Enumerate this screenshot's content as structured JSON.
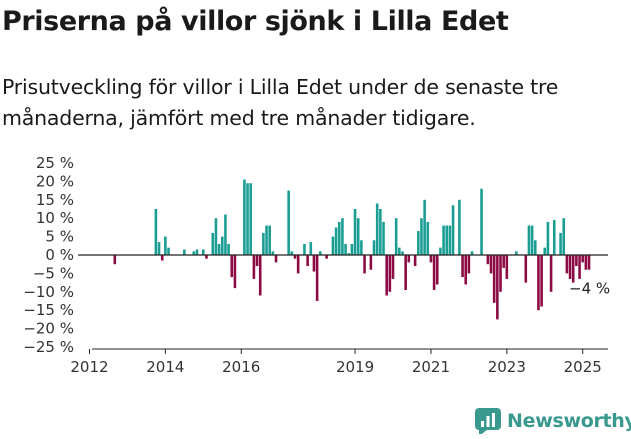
{
  "title": "Priserna på villor sjönk i Lilla Edet",
  "subtitle": "Prisutveckling för villor i Lilla Edet under de senaste tre månaderna, jämfört med tre månader tidigare.",
  "brand": {
    "name": "Newsworthy",
    "icon": "newsworthy-chart-logo-icon",
    "color": "#39998e"
  },
  "colors": {
    "positive": "#1a9e94",
    "negative": "#8c0b45",
    "axis": "#222222",
    "tick": "#333333"
  },
  "chart_data": {
    "type": "bar",
    "title": "",
    "xlabel": "",
    "ylabel": "",
    "x_ticks": [
      "2012",
      "2014",
      "2016",
      "2019",
      "2021",
      "2023",
      "2025"
    ],
    "y_ticks": [
      "25 %",
      "20 %",
      "15 %",
      "10 %",
      "5 %",
      "0 %",
      "−5 %",
      "−10 %",
      "−15 %",
      "−20 %",
      "−25 %"
    ],
    "ylim": [
      -25,
      25
    ],
    "xlim": [
      "2011-10",
      "2025-09"
    ],
    "grid": false,
    "annotation": {
      "text": "−4 %",
      "x": "2025-03",
      "y": -4
    },
    "series": [
      {
        "x": [
          "2012-09",
          "2013-10",
          "2013-11",
          "2013-12",
          "2014-01",
          "2014-02",
          "2014-07",
          "2014-10",
          "2014-11",
          "2015-01",
          "2015-02",
          "2015-04",
          "2015-05",
          "2015-06",
          "2015-07",
          "2015-08",
          "2015-09",
          "2015-10",
          "2015-11",
          "2016-02",
          "2016-03",
          "2016-04",
          "2016-05",
          "2016-06",
          "2016-07",
          "2016-08",
          "2016-09",
          "2016-10",
          "2016-11",
          "2016-12",
          "2017-04",
          "2017-05",
          "2017-06",
          "2017-07",
          "2017-09",
          "2017-10",
          "2017-11",
          "2017-12",
          "2018-01",
          "2018-02",
          "2018-04",
          "2018-06",
          "2018-07",
          "2018-08",
          "2018-09",
          "2018-10",
          "2018-11",
          "2018-12",
          "2019-01",
          "2019-02",
          "2019-03",
          "2019-04",
          "2019-06",
          "2019-07",
          "2019-08",
          "2019-09",
          "2019-10",
          "2019-11",
          "2019-12",
          "2020-01",
          "2020-02",
          "2020-03",
          "2020-04",
          "2020-05",
          "2020-06",
          "2020-08",
          "2020-09",
          "2020-10",
          "2020-11",
          "2020-12",
          "2021-01",
          "2021-02",
          "2021-03",
          "2021-04",
          "2021-05",
          "2021-06",
          "2021-07",
          "2021-08",
          "2021-10",
          "2021-11",
          "2021-12",
          "2022-01",
          "2022-02",
          "2022-05",
          "2022-07",
          "2022-08",
          "2022-09",
          "2022-10",
          "2022-11",
          "2022-12",
          "2023-01",
          "2023-04",
          "2023-07",
          "2023-08",
          "2023-09",
          "2023-10",
          "2023-11",
          "2023-12",
          "2024-01",
          "2024-02",
          "2024-03",
          "2024-04",
          "2024-06",
          "2024-07",
          "2024-08",
          "2024-09",
          "2024-10",
          "2024-11",
          "2024-12",
          "2025-01",
          "2025-02",
          "2025-03"
        ],
        "values": [
          -2.5,
          12.5,
          3.5,
          -1.5,
          5.0,
          2.0,
          1.5,
          1.0,
          1.5,
          1.5,
          -1.0,
          6.0,
          10.0,
          3.0,
          5.0,
          11.0,
          3.0,
          -6.0,
          -9.0,
          20.5,
          19.5,
          19.5,
          -6.5,
          -3.0,
          -11.0,
          6.0,
          8.0,
          8.0,
          1.0,
          -2.0,
          17.5,
          1.0,
          -1.0,
          -5.0,
          3.0,
          -3.0,
          3.5,
          -4.5,
          -12.5,
          1.0,
          -1.0,
          5.0,
          7.5,
          9.0,
          10.0,
          3.0,
          0.5,
          3.0,
          12.5,
          10.0,
          4.0,
          -5.0,
          -4.0,
          4.0,
          14.0,
          12.5,
          9.0,
          -11.0,
          -10.0,
          -6.5,
          10.0,
          2.0,
          1.0,
          -9.5,
          -2.0,
          -3.0,
          6.5,
          10.0,
          15.0,
          9.0,
          -2.0,
          -9.5,
          -8.0,
          2.0,
          8.0,
          8.0,
          8.0,
          13.5,
          15.0,
          -6.0,
          -8.0,
          -5.0,
          1.0,
          18.0,
          -2.5,
          -5.0,
          -13.0,
          -17.5,
          -10.0,
          -3.5,
          -6.5,
          1.0,
          -7.5,
          8.0,
          8.0,
          4.0,
          -15.0,
          -14.0,
          2.0,
          9.0,
          -10.0,
          9.5,
          6.0,
          10.0,
          -5.0,
          -6.5,
          -7.5,
          -3.0,
          -6.5,
          -2.0,
          -4.0,
          -4.0
        ]
      }
    ]
  }
}
